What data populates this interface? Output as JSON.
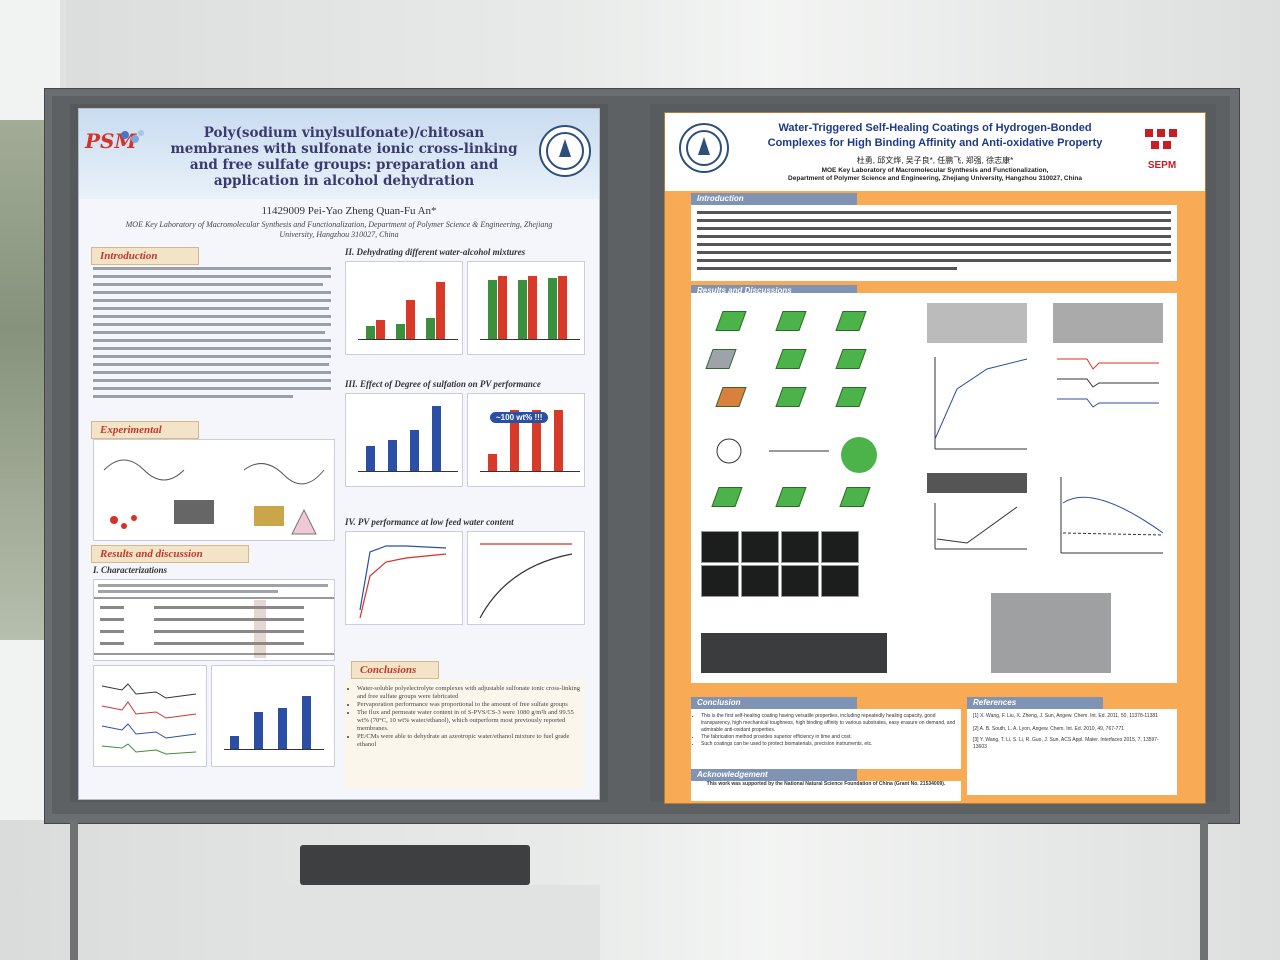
{
  "left_poster": {
    "logo_text": "PSM",
    "title": "Poly(sodium vinylsulfonate)/chitosan membranes with sulfonate ionic cross-linking and free sulfate groups: preparation and application in alcohol dehydration",
    "authors": "11429009  Pei-Yao Zheng  Quan-Fu An*",
    "affiliation": "MOE Key Laboratory of Macromolecular Synthesis and Functionalization, Department of Polymer Science & Engineering, Zhejiang University, Hangzhou 310027, China",
    "sections": {
      "introduction": "Introduction",
      "experimental": "Experimental",
      "results": "Results and discussion",
      "characterizations": "I. Characterizations",
      "dehydrating": "II. Dehydrating different water-alcohol mixtures",
      "effect": "III. Effect of Degree of sulfation on PV performance",
      "low_feed": "IV. PV performance at low feed water content",
      "conclusions": "Conclusions"
    },
    "annotation": "~100 wt% !!!",
    "conclusions": [
      "Water-soluble polyelectrolyte complexes with adjustable sulfonate ionic cross-linking and free sulfate groups were fabricated",
      "Pervaporation performance was proportional to the amount of free sulfate groups",
      "The flux and permeate water content in of S-PVS/CS-3 were 1080 g/m²h and 99.55 wt% (70°C, 10 wt% water/ethanol), which outperform most previously reported membranes.",
      "PE/CMs were able to dehydrate an azeotropic water/ethanol mixture to fuel grade ethanol"
    ]
  },
  "right_poster": {
    "title_line1": "Water-Triggered Self-Healing Coatings of Hydrogen-Bonded",
    "title_line2": "Complexes for High Binding Affinity and Anti-oxidative Property",
    "authors": "杜勇, 邱文烨, 吴子良*, 任鹏飞, 郑强, 徐志康*",
    "affiliation_line1": "MOE Key Laboratory of Macromolecular Synthesis and Functionalization,",
    "affiliation_line2": "Department of Polymer Science and Engineering, Zhejiang University, Hangzhou 310027, China",
    "sepm": "SEPM",
    "sections": {
      "introduction": "Introduction",
      "results": "Results and Discussions",
      "conclusion": "Conclusion",
      "references": "References",
      "acknowledgement": "Acknowledgement"
    },
    "acknowledgement": "This work was supported by the National Natural Science Foundation of China (Grant No. 21534009).",
    "conclusion_items": [
      "This is the first self-healing coating having versatile properties, including repeatedly healing capacity, good transparency, high mechanical toughness, high binding affinity to various substrates, easy erasure on demand, and admirable anti-oxidant properties.",
      "The fabrication method provides superior efficiency in time and cost.",
      "Such coatings can be used to protect biomaterials, precision instruments, etc."
    ],
    "references": [
      "[1] X. Wang, F. Liu, X. Zheng, J. Sun, Angew. Chem. Int. Ed. 2011, 50, 11378-11381",
      "[2] A. B. South, L. A. Lyon, Angew. Chem. Int. Ed. 2010, 49, 767-771",
      "[3] Y. Wang, T. Li, S. Li, R. Guo, J. Sun, ACS Appl. Mater. Interfaces 2015, 7, 13597-13603"
    ]
  }
}
